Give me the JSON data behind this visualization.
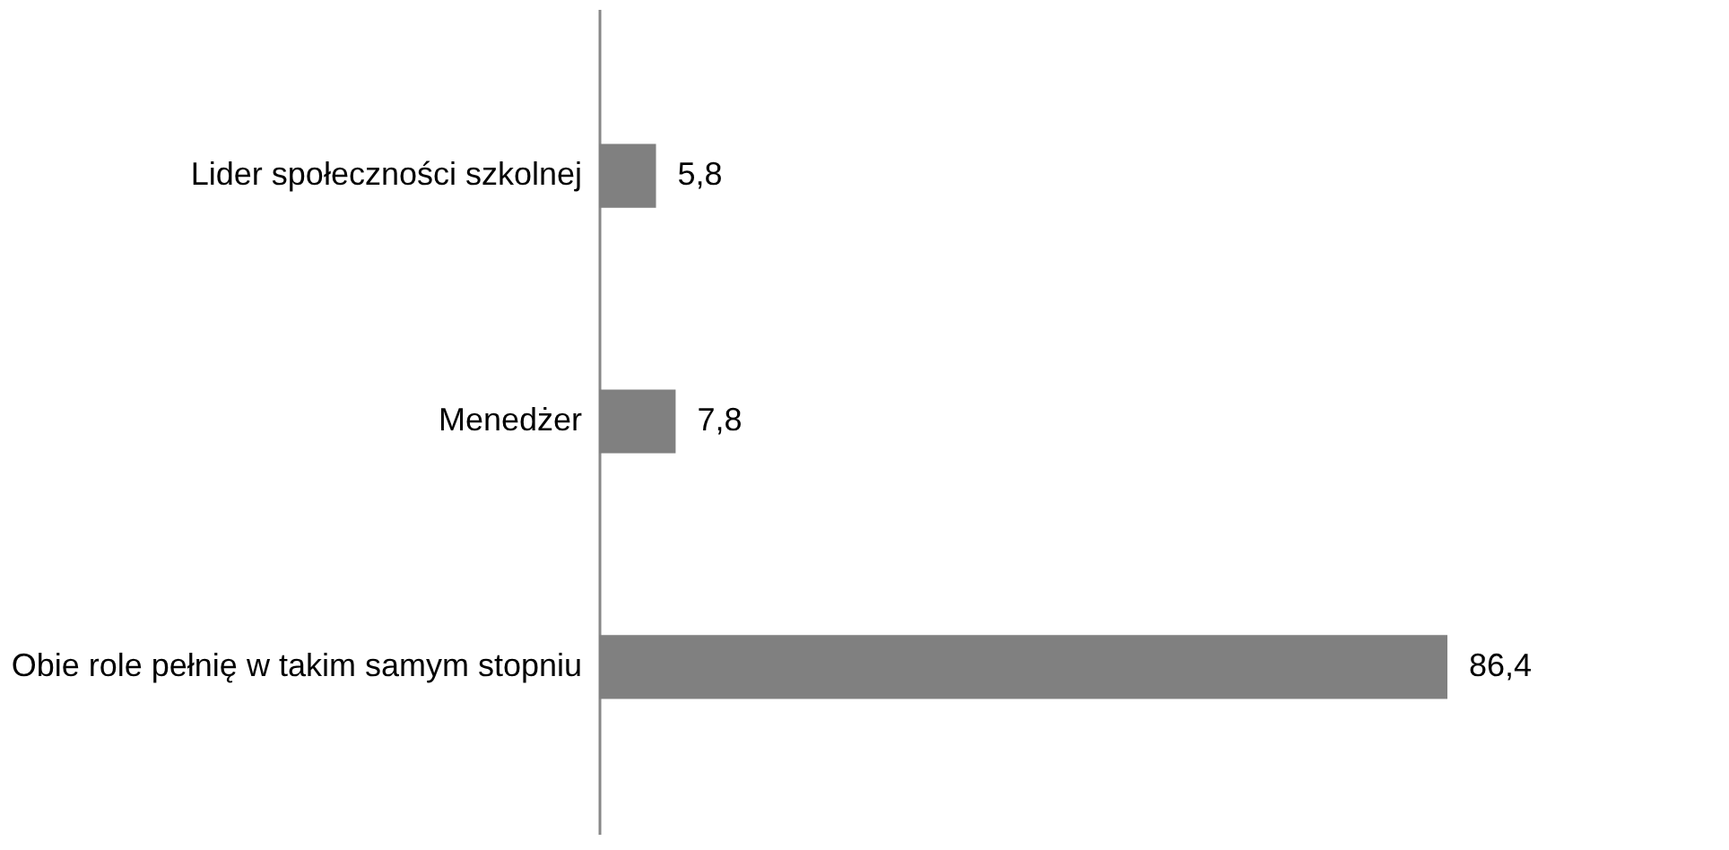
{
  "chart_data": {
    "type": "bar",
    "orientation": "horizontal",
    "categories": [
      "Lider społeczności szkolnej",
      "Menedżer",
      "Obie role pełnię w takim samym stopniu"
    ],
    "values": [
      5.8,
      7.8,
      86.4
    ],
    "color": "#808080",
    "value_labels": [
      "5,8",
      "7,8",
      "86,4"
    ],
    "grid": false
  }
}
